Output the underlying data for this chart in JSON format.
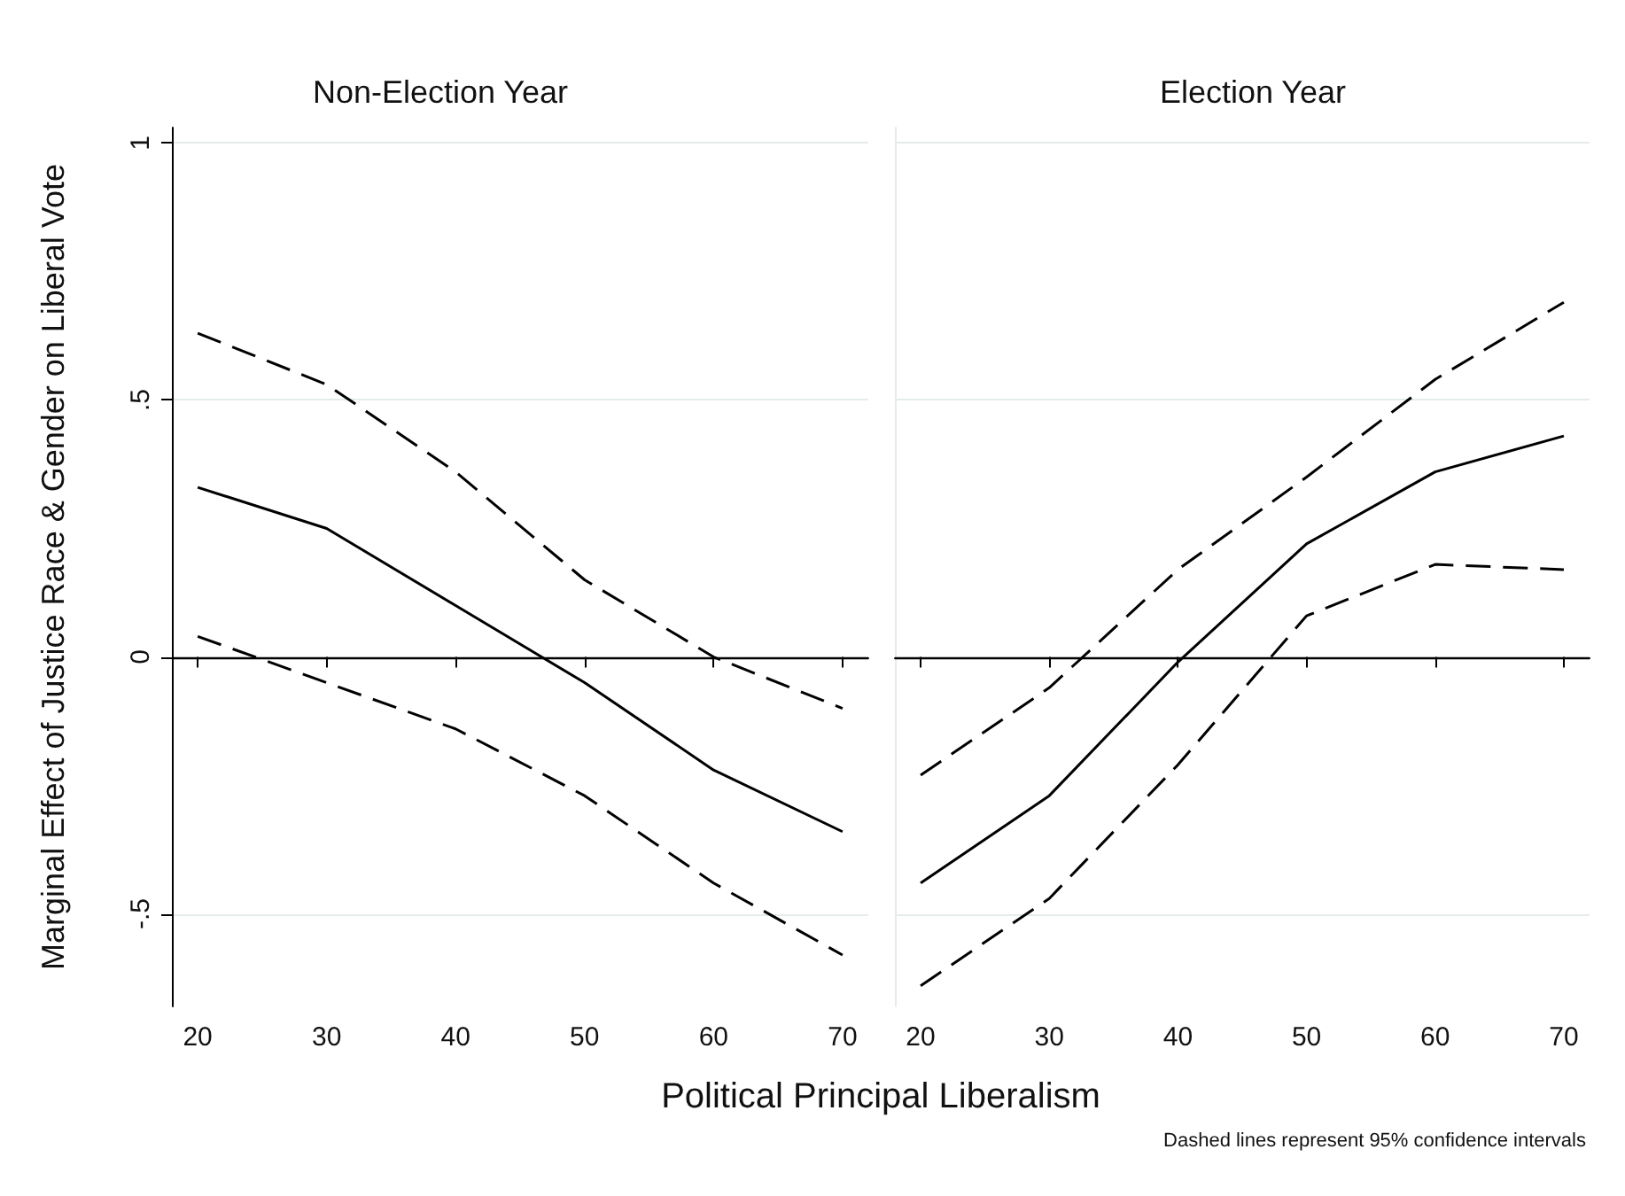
{
  "chart_data": [
    {
      "type": "line",
      "title": "Non-Election Year",
      "xlabel": "Political Principal Liberalism",
      "ylabel": "Marginal Effect of Justice Race & Gender on Liberal Vote",
      "x": [
        20,
        30,
        40,
        50,
        60,
        70
      ],
      "series": [
        {
          "color": "#000000",
          "line_style": "solid",
          "values": [
            0.33,
            0.25,
            0.1,
            -0.05,
            -0.22,
            -0.34
          ]
        },
        {
          "color": "#000000",
          "line_style": "dashed",
          "values": [
            0.63,
            0.53,
            0.36,
            0.15,
            0.0,
            -0.1
          ]
        },
        {
          "color": "#000000",
          "line_style": "dashed",
          "values": [
            0.04,
            -0.05,
            -0.14,
            -0.27,
            -0.44,
            -0.58
          ]
        }
      ],
      "xlim": [
        18,
        72
      ],
      "xticks": [
        20,
        30,
        40,
        50,
        60,
        70
      ],
      "ylim": [
        -0.68,
        1.03
      ],
      "yticks": [
        {
          "value": -0.5,
          "label": "-.5"
        },
        {
          "value": 0,
          "label": "0"
        },
        {
          "value": 0.5,
          "label": ".5"
        },
        {
          "value": 1,
          "label": "1"
        }
      ],
      "ref_lines": [
        {
          "axis": "y",
          "value": 0,
          "color": "#000000"
        }
      ],
      "grid": "y",
      "marker": "none"
    },
    {
      "type": "line",
      "title": "Election Year",
      "annotations": [
        "Dashed lines represent 95% confidence intervals"
      ],
      "x": [
        20,
        30,
        40,
        50,
        60,
        70
      ],
      "series": [
        {
          "color": "#000000",
          "line_style": "solid",
          "values": [
            -0.44,
            -0.27,
            -0.01,
            0.22,
            0.36,
            0.43
          ]
        },
        {
          "color": "#000000",
          "line_style": "dashed",
          "values": [
            -0.23,
            -0.06,
            0.17,
            0.35,
            0.54,
            0.69
          ]
        },
        {
          "color": "#000000",
          "line_style": "dashed",
          "values": [
            -0.64,
            -0.47,
            -0.21,
            0.08,
            0.18,
            0.17
          ]
        }
      ],
      "xlim": [
        18,
        72
      ],
      "xticks": [
        20,
        30,
        40,
        50,
        60,
        70
      ],
      "ylim": [
        -0.68,
        1.03
      ],
      "yticks": [
        -0.5,
        0,
        0.5,
        1
      ],
      "ref_lines": [
        {
          "axis": "y",
          "value": 0,
          "color": "#000000"
        }
      ],
      "grid": "y",
      "marker": "none",
      "tick_labels": "x"
    }
  ]
}
